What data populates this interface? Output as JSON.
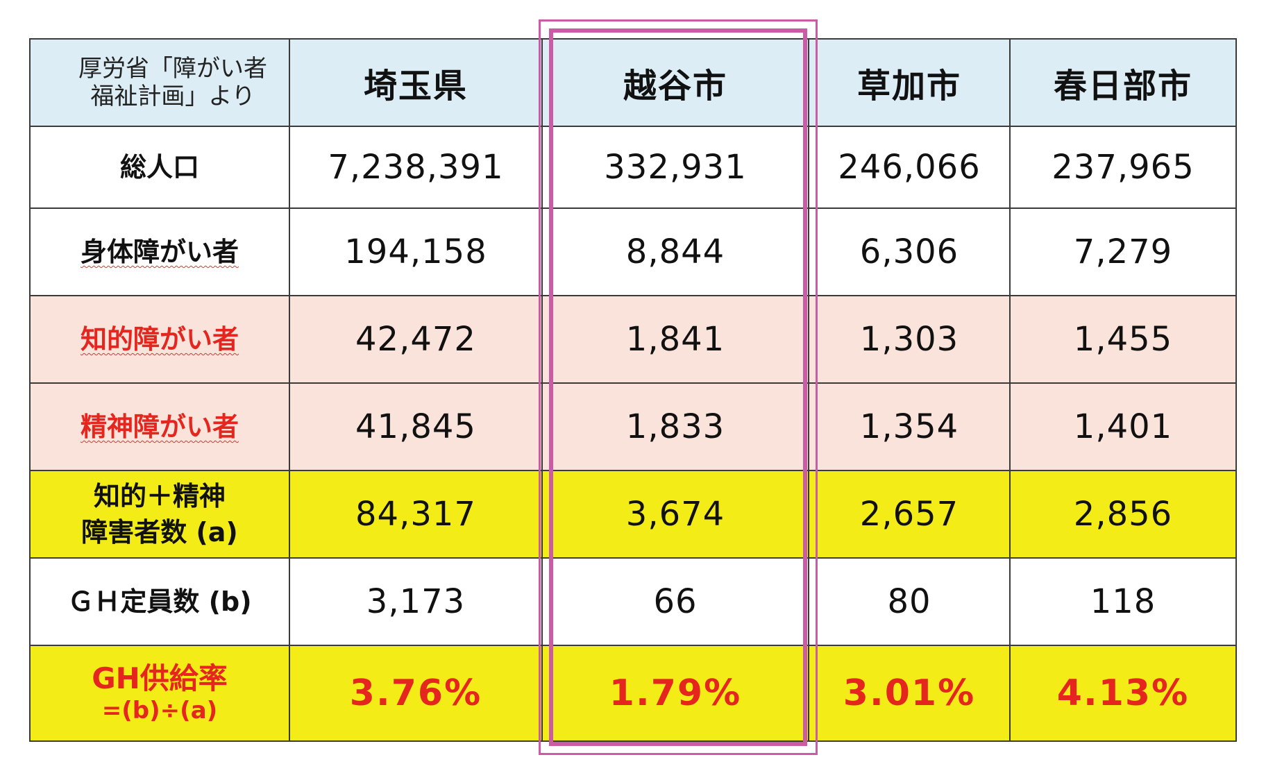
{
  "header": {
    "note": [
      "厚労省「障がい者",
      "福祉計画」より"
    ],
    "cities": [
      "埼玉県",
      "越谷市",
      "草加市",
      "春日部市"
    ]
  },
  "rows": {
    "total_population": {
      "label": "総人口",
      "values": [
        "7,238,391",
        "332,931",
        "246,066",
        "237,965"
      ]
    },
    "physical": {
      "label": "身体障がい者",
      "values": [
        "194,158",
        "8,844",
        "6,306",
        "7,279"
      ]
    },
    "intellectual": {
      "label": "知的障がい者",
      "values": [
        "42,472",
        "1,841",
        "1,303",
        "1,455"
      ]
    },
    "mental": {
      "label": "精神障がい者",
      "values": [
        "41,845",
        "1,833",
        "1,354",
        "1,401"
      ]
    },
    "combined": {
      "label": [
        "知的＋精神",
        "障害者数 (a)"
      ],
      "values": [
        "84,317",
        "3,674",
        "2,657",
        "2,856"
      ]
    },
    "gh_capacity": {
      "label": "ＧＨ定員数 (b)",
      "values": [
        "3,173",
        "66",
        "80",
        "118"
      ]
    },
    "gh_rate": {
      "label": [
        "GH供給率",
        "=(b)÷(a)"
      ],
      "values": [
        "3.76%",
        "1.79%",
        "3.01%",
        "4.13%"
      ]
    }
  },
  "colors": {
    "header_bg": "#dcedf5",
    "pink_row_bg": "#fae3da",
    "yellow_row_bg": "#f3ec17",
    "red_text": "#e5261f",
    "highlight_frame": "#cc5ba6"
  }
}
